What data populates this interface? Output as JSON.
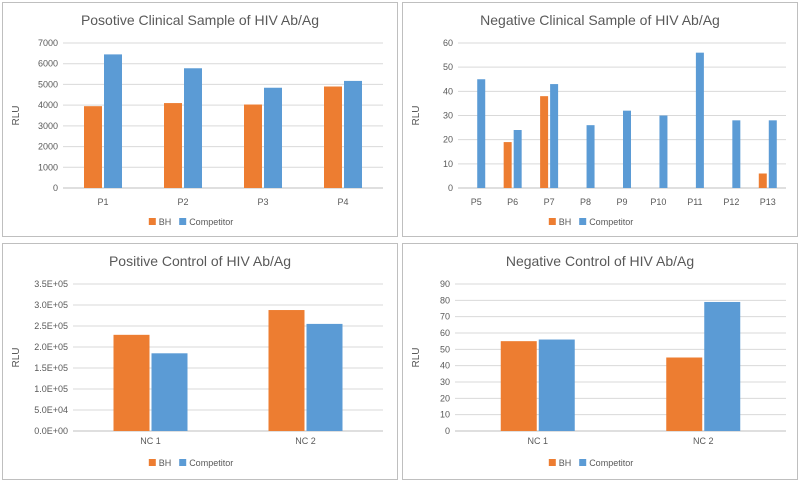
{
  "colors": {
    "bh": "#ED7D31",
    "competitor": "#5B9BD5"
  },
  "chart_data": [
    {
      "type": "bar",
      "title": "Posotive Clinical Sample of HIV Ab/Ag",
      "ylabel": "RLU",
      "categories": [
        "P1",
        "P2",
        "P3",
        "P4"
      ],
      "series": [
        {
          "name": "BH",
          "values": [
            3950,
            4100,
            4030,
            4900
          ]
        },
        {
          "name": "Competitor",
          "values": [
            6450,
            5780,
            4840,
            5170
          ]
        }
      ],
      "ylim": [
        0,
        7000
      ],
      "yticks": [
        "0",
        "1000",
        "2000",
        "3000",
        "4000",
        "5000",
        "6000",
        "7000"
      ],
      "grid": true,
      "legend": "bottom"
    },
    {
      "type": "bar",
      "title": "Negative Clinical Sample of HIV Ab/Ag",
      "ylabel": "RLU",
      "categories": [
        "P5",
        "P6",
        "P7",
        "P8",
        "P9",
        "P10",
        "P11",
        "P12",
        "P13"
      ],
      "series": [
        {
          "name": "BH",
          "values": [
            0,
            19,
            38,
            0,
            0,
            0,
            0,
            0,
            6
          ]
        },
        {
          "name": "Competitor",
          "values": [
            45,
            24,
            43,
            26,
            32,
            30,
            56,
            28,
            28
          ]
        }
      ],
      "ylim": [
        0,
        60
      ],
      "yticks": [
        "0",
        "10",
        "20",
        "30",
        "40",
        "50",
        "60"
      ],
      "grid": true,
      "legend": "bottom"
    },
    {
      "type": "bar",
      "title": "Positive Control of HIV Ab/Ag",
      "ylabel": "RLU",
      "categories": [
        "NC 1",
        "NC 2"
      ],
      "series": [
        {
          "name": "BH",
          "values": [
            229000,
            288000
          ]
        },
        {
          "name": "Competitor",
          "values": [
            185000,
            255000
          ]
        }
      ],
      "ylim": [
        0,
        350000
      ],
      "yticks": [
        "0.0E+00",
        "5.0E+04",
        "1.0E+05",
        "1.5E+05",
        "2.0E+05",
        "2.5E+05",
        "3.0E+05",
        "3.5E+05"
      ],
      "grid": true,
      "legend": "bottom"
    },
    {
      "type": "bar",
      "title": "Negative Control of  HIV Ab/Ag",
      "ylabel": "RLU",
      "categories": [
        "NC 1",
        "NC 2"
      ],
      "series": [
        {
          "name": "BH",
          "values": [
            55,
            45
          ]
        },
        {
          "name": "Competitor",
          "values": [
            56,
            79
          ]
        }
      ],
      "ylim": [
        0,
        90
      ],
      "yticks": [
        "0",
        "10",
        "20",
        "30",
        "40",
        "50",
        "60",
        "70",
        "80",
        "90"
      ],
      "grid": true,
      "legend": "bottom"
    }
  ]
}
